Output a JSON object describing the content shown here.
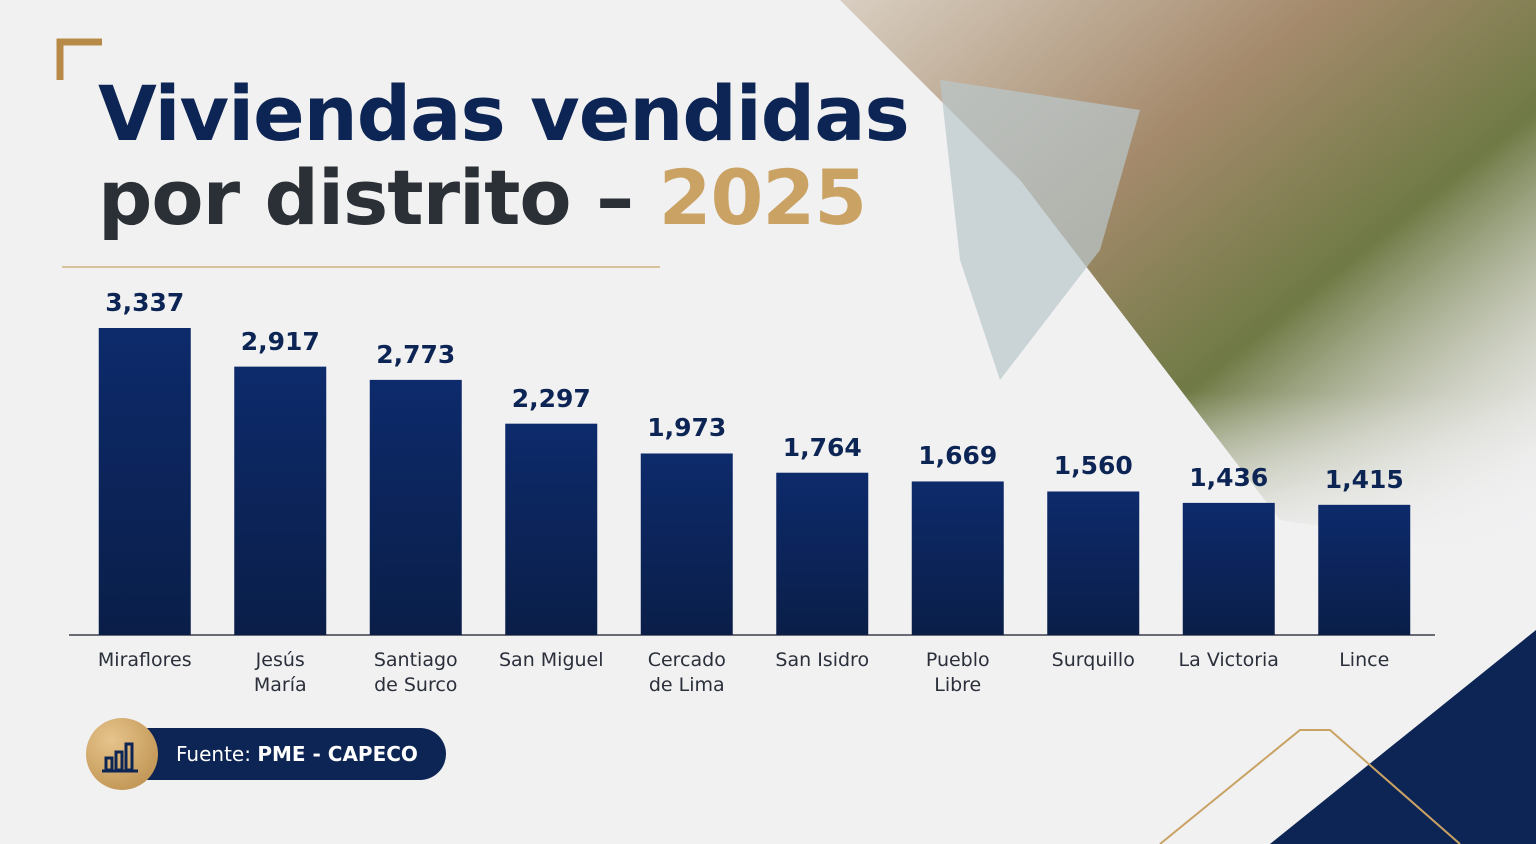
{
  "chart_data": {
    "type": "bar",
    "title": {
      "line1": "Viviendas vendidas",
      "line2": "por distrito –",
      "highlight": "2025"
    },
    "categories": [
      "Miraflores",
      "Jesús\nMaría",
      "Santiago\nde Surco",
      "San Miguel",
      "Cercado\nde Lima",
      "San Isidro",
      "Pueblo\nLibre",
      "Surquillo",
      "La Victoria",
      "Lince"
    ],
    "values": [
      3337,
      2917,
      2773,
      2297,
      1973,
      1764,
      1669,
      1560,
      1436,
      1415
    ],
    "value_labels": [
      "3,337",
      "2,917",
      "2,773",
      "2,297",
      "1,973",
      "1,764",
      "1,669",
      "1,560",
      "1,436",
      "1,415"
    ],
    "color": "#0d2a6b",
    "source": {
      "label": "Fuente:",
      "value": "PME - CAPECO"
    }
  }
}
